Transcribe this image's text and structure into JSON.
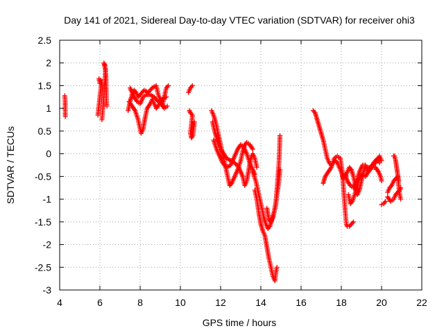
{
  "chart_data": {
    "type": "scatter",
    "title": "Day 141 of 2021, Sidereal Day-to-day VTEC variation (SDTVAR) for receiver ohi3",
    "xlabel": "GPS time / hours",
    "ylabel": "SDTVAR / TECUs",
    "xlim": [
      4,
      22
    ],
    "ylim": [
      -3,
      2.5
    ],
    "xticks": [
      4,
      6,
      8,
      10,
      12,
      14,
      16,
      18,
      20,
      22
    ],
    "yticks": [
      -3,
      -2.5,
      -2,
      -1.5,
      -1,
      -0.5,
      0,
      0.5,
      1,
      1.5,
      2,
      2.5
    ],
    "grid": true,
    "marker": "+",
    "color": "#ff0000",
    "series": [
      {
        "name": "SDTVAR",
        "traces": [
          [
            [
              4.25,
              1.28
            ],
            [
              4.27,
              1.18
            ],
            [
              4.28,
              0.82
            ]
          ],
          [
            [
              5.9,
              0.85
            ],
            [
              5.95,
              1.05
            ],
            [
              6.0,
              1.25
            ],
            [
              6.05,
              1.45
            ],
            [
              6.1,
              1.6
            ],
            [
              5.95,
              1.65
            ],
            [
              6.0,
              1.55
            ]
          ],
          [
            [
              6.1,
              0.75
            ],
            [
              6.15,
              1.0
            ],
            [
              6.2,
              1.3
            ],
            [
              6.25,
              1.6
            ],
            [
              6.28,
              1.85
            ],
            [
              6.2,
              2.0
            ],
            [
              6.25,
              1.95
            ],
            [
              6.3,
              1.7
            ],
            [
              6.32,
              1.2
            ],
            [
              6.35,
              1.05
            ]
          ],
          [
            [
              7.4,
              0.95
            ],
            [
              7.5,
              1.15
            ],
            [
              7.6,
              1.3
            ],
            [
              7.7,
              1.4
            ],
            [
              7.8,
              1.35
            ],
            [
              7.9,
              1.25
            ],
            [
              8.0,
              1.3
            ],
            [
              8.2,
              1.4
            ],
            [
              8.4,
              1.35
            ],
            [
              8.6,
              1.45
            ],
            [
              8.8,
              1.5
            ],
            [
              8.9,
              1.3
            ],
            [
              9.0,
              1.2
            ],
            [
              9.1,
              1.05
            ],
            [
              9.2,
              1.25
            ],
            [
              9.3,
              1.45
            ],
            [
              9.4,
              1.5
            ]
          ],
          [
            [
              7.45,
              1.15
            ],
            [
              7.6,
              1.05
            ],
            [
              7.75,
              0.95
            ],
            [
              7.9,
              0.75
            ],
            [
              8.0,
              0.55
            ],
            [
              8.05,
              0.45
            ],
            [
              8.15,
              0.55
            ],
            [
              8.25,
              0.8
            ],
            [
              8.35,
              1.0
            ],
            [
              8.5,
              1.1
            ],
            [
              8.6,
              1.2
            ],
            [
              8.7,
              1.1
            ],
            [
              8.8,
              1.0
            ],
            [
              8.9,
              1.05
            ],
            [
              9.0,
              1.15
            ],
            [
              9.2,
              1.0
            ],
            [
              9.35,
              1.05
            ]
          ],
          [
            [
              7.5,
              1.45
            ],
            [
              7.7,
              1.25
            ],
            [
              7.85,
              1.15
            ],
            [
              8.0,
              1.1
            ],
            [
              8.15,
              1.25
            ],
            [
              8.3,
              1.3
            ],
            [
              8.5,
              1.3
            ],
            [
              8.7,
              1.25
            ],
            [
              8.9,
              1.15
            ],
            [
              9.1,
              1.2
            ],
            [
              9.3,
              1.25
            ]
          ],
          [
            [
              10.4,
              1.35
            ],
            [
              10.5,
              1.45
            ],
            [
              10.6,
              1.5
            ]
          ],
          [
            [
              10.45,
              0.95
            ],
            [
              10.5,
              0.9
            ],
            [
              10.6,
              0.85
            ],
            [
              10.55,
              0.65
            ],
            [
              10.5,
              0.45
            ],
            [
              10.55,
              0.35
            ],
            [
              10.62,
              0.4
            ],
            [
              10.7,
              0.7
            ]
          ],
          [
            [
              11.55,
              0.95
            ],
            [
              11.65,
              0.85
            ],
            [
              11.75,
              0.7
            ],
            [
              11.85,
              0.5
            ],
            [
              11.95,
              0.3
            ],
            [
              12.05,
              0.1
            ],
            [
              12.15,
              -0.1
            ],
            [
              12.25,
              -0.3
            ],
            [
              12.35,
              -0.5
            ],
            [
              12.45,
              -0.7
            ],
            [
              12.55,
              -0.65
            ],
            [
              12.7,
              -0.5
            ],
            [
              12.85,
              -0.35
            ],
            [
              13.0,
              -0.15
            ],
            [
              13.1,
              0.05
            ],
            [
              13.2,
              0.2
            ],
            [
              13.3,
              0.25
            ],
            [
              13.45,
              0.2
            ],
            [
              13.6,
              0.1
            ]
          ],
          [
            [
              11.6,
              0.7
            ],
            [
              11.7,
              0.5
            ],
            [
              11.8,
              0.35
            ],
            [
              11.9,
              0.2
            ],
            [
              12.0,
              0.1
            ],
            [
              12.15,
              0.0
            ],
            [
              12.3,
              -0.1
            ],
            [
              12.5,
              -0.15
            ],
            [
              12.7,
              -0.2
            ],
            [
              12.9,
              -0.3
            ],
            [
              13.1,
              -0.5
            ],
            [
              13.2,
              -0.7
            ],
            [
              13.3,
              -0.6
            ],
            [
              13.4,
              -0.35
            ],
            [
              13.5,
              -0.1
            ],
            [
              13.6,
              0.0
            ],
            [
              13.7,
              -0.1
            ],
            [
              13.8,
              -0.3
            ]
          ],
          [
            [
              11.65,
              0.3
            ],
            [
              11.8,
              0.1
            ],
            [
              11.95,
              -0.05
            ],
            [
              12.1,
              -0.2
            ],
            [
              12.3,
              -0.3
            ],
            [
              12.5,
              -0.25
            ],
            [
              12.7,
              -0.05
            ],
            [
              12.85,
              0.1
            ],
            [
              13.0,
              0.2
            ],
            [
              13.15,
              0.15
            ],
            [
              13.3,
              0.0
            ],
            [
              13.45,
              -0.2
            ],
            [
              13.55,
              -0.3
            ],
            [
              13.7,
              -0.45
            ]
          ],
          [
            [
              13.6,
              -0.4
            ],
            [
              13.75,
              -0.6
            ],
            [
              13.85,
              -0.8
            ],
            [
              13.95,
              -1.0
            ],
            [
              14.05,
              -1.2
            ],
            [
              14.15,
              -1.4
            ],
            [
              14.25,
              -1.55
            ],
            [
              14.35,
              -1.65
            ],
            [
              14.45,
              -1.6
            ],
            [
              14.55,
              -1.45
            ],
            [
              14.65,
              -1.3
            ],
            [
              14.75,
              -1.1
            ],
            [
              14.8,
              -0.8
            ],
            [
              14.85,
              -0.5
            ],
            [
              14.9,
              -0.2
            ],
            [
              14.93,
              0.1
            ],
            [
              14.95,
              0.4
            ]
          ],
          [
            [
              13.7,
              -0.8
            ],
            [
              13.8,
              -1.0
            ],
            [
              13.9,
              -1.3
            ],
            [
              14.0,
              -1.55
            ],
            [
              14.1,
              -1.7
            ],
            [
              14.2,
              -1.8
            ],
            [
              14.3,
              -2.05
            ],
            [
              14.4,
              -2.3
            ],
            [
              14.5,
              -2.5
            ],
            [
              14.6,
              -2.7
            ],
            [
              14.7,
              -2.8
            ],
            [
              14.75,
              -2.6
            ],
            [
              14.8,
              -2.5
            ]
          ],
          [
            [
              14.3,
              -1.2
            ],
            [
              14.4,
              -1.45
            ],
            [
              14.5,
              -1.5
            ],
            [
              14.6,
              -1.4
            ],
            [
              14.7,
              -1.2
            ],
            [
              14.8,
              -0.9
            ],
            [
              14.9,
              -0.6
            ],
            [
              14.95,
              -0.35
            ]
          ],
          [
            [
              16.6,
              0.95
            ],
            [
              16.7,
              0.9
            ],
            [
              16.8,
              0.75
            ],
            [
              16.9,
              0.6
            ],
            [
              17.0,
              0.45
            ],
            [
              17.1,
              0.3
            ],
            [
              17.2,
              0.1
            ],
            [
              17.3,
              -0.1
            ],
            [
              17.4,
              -0.2
            ],
            [
              17.5,
              -0.25
            ],
            [
              17.6,
              -0.2
            ],
            [
              17.7,
              -0.15
            ],
            [
              17.8,
              -0.2
            ],
            [
              17.9,
              -0.3
            ],
            [
              18.0,
              -0.4
            ],
            [
              18.1,
              -0.55
            ],
            [
              18.2,
              -0.5
            ],
            [
              18.3,
              -0.4
            ],
            [
              18.4,
              -0.3
            ],
            [
              18.5,
              -0.35
            ],
            [
              18.6,
              -0.5
            ],
            [
              18.7,
              -0.7
            ],
            [
              18.8,
              -0.9
            ],
            [
              18.9,
              -0.8
            ],
            [
              19.0,
              -0.6
            ],
            [
              19.1,
              -0.4
            ],
            [
              19.2,
              -0.3
            ],
            [
              19.4,
              -0.3
            ],
            [
              19.6,
              -0.25
            ],
            [
              19.8,
              -0.15
            ],
            [
              19.9,
              -0.05
            ],
            [
              20.0,
              -0.15
            ]
          ],
          [
            [
              17.1,
              -0.65
            ],
            [
              17.2,
              -0.5
            ],
            [
              17.35,
              -0.4
            ],
            [
              17.5,
              -0.3
            ],
            [
              17.65,
              -0.1
            ],
            [
              17.8,
              -0.05
            ],
            [
              17.95,
              -0.1
            ],
            [
              18.05,
              -0.4
            ],
            [
              18.1,
              -0.7
            ],
            [
              18.15,
              -1.0
            ],
            [
              18.2,
              -1.3
            ],
            [
              18.25,
              -1.55
            ],
            [
              18.3,
              -1.6
            ],
            [
              18.4,
              -1.6
            ],
            [
              18.5,
              -1.55
            ],
            [
              18.6,
              -1.5
            ]
          ],
          [
            [
              18.35,
              -0.9
            ],
            [
              18.45,
              -1.1
            ],
            [
              18.55,
              -1.05
            ],
            [
              18.7,
              -0.85
            ],
            [
              18.85,
              -0.6
            ],
            [
              19.0,
              -0.45
            ],
            [
              19.2,
              -0.5
            ],
            [
              19.4,
              -0.35
            ],
            [
              19.6,
              -0.2
            ],
            [
              19.8,
              -0.1
            ],
            [
              19.9,
              -0.2
            ]
          ],
          [
            [
              18.2,
              -0.45
            ],
            [
              18.3,
              -0.6
            ],
            [
              18.45,
              -0.7
            ],
            [
              18.6,
              -0.75
            ],
            [
              18.75,
              -0.6
            ],
            [
              18.9,
              -0.4
            ],
            [
              19.05,
              -0.25
            ],
            [
              19.2,
              -0.25
            ],
            [
              19.35,
              -0.4
            ],
            [
              19.5,
              -0.3
            ],
            [
              19.7,
              -0.3
            ],
            [
              19.85,
              -0.4
            ],
            [
              19.95,
              -0.5
            ],
            [
              20.0,
              -0.6
            ]
          ],
          [
            [
              20.0,
              -1.12
            ],
            [
              20.1,
              -1.1
            ],
            [
              20.2,
              -1.05
            ]
          ],
          [
            [
              20.3,
              -0.85
            ],
            [
              20.4,
              -0.75
            ],
            [
              20.5,
              -0.7
            ],
            [
              20.6,
              -0.6
            ],
            [
              20.7,
              -0.55
            ],
            [
              20.8,
              -0.5
            ],
            [
              20.85,
              -0.7
            ],
            [
              20.9,
              -0.9
            ],
            [
              20.95,
              -1.0
            ]
          ],
          [
            [
              20.3,
              -0.95
            ],
            [
              20.45,
              -1.05
            ],
            [
              20.6,
              -1.0
            ],
            [
              20.7,
              -0.9
            ],
            [
              20.8,
              -0.85
            ],
            [
              20.9,
              -0.8
            ],
            [
              20.95,
              -0.75
            ]
          ],
          [
            [
              20.6,
              -0.05
            ],
            [
              20.65,
              -0.05
            ],
            [
              20.7,
              -0.15
            ],
            [
              20.75,
              -0.3
            ],
            [
              20.8,
              -0.45
            ],
            [
              20.85,
              -0.6
            ]
          ]
        ]
      }
    ]
  }
}
